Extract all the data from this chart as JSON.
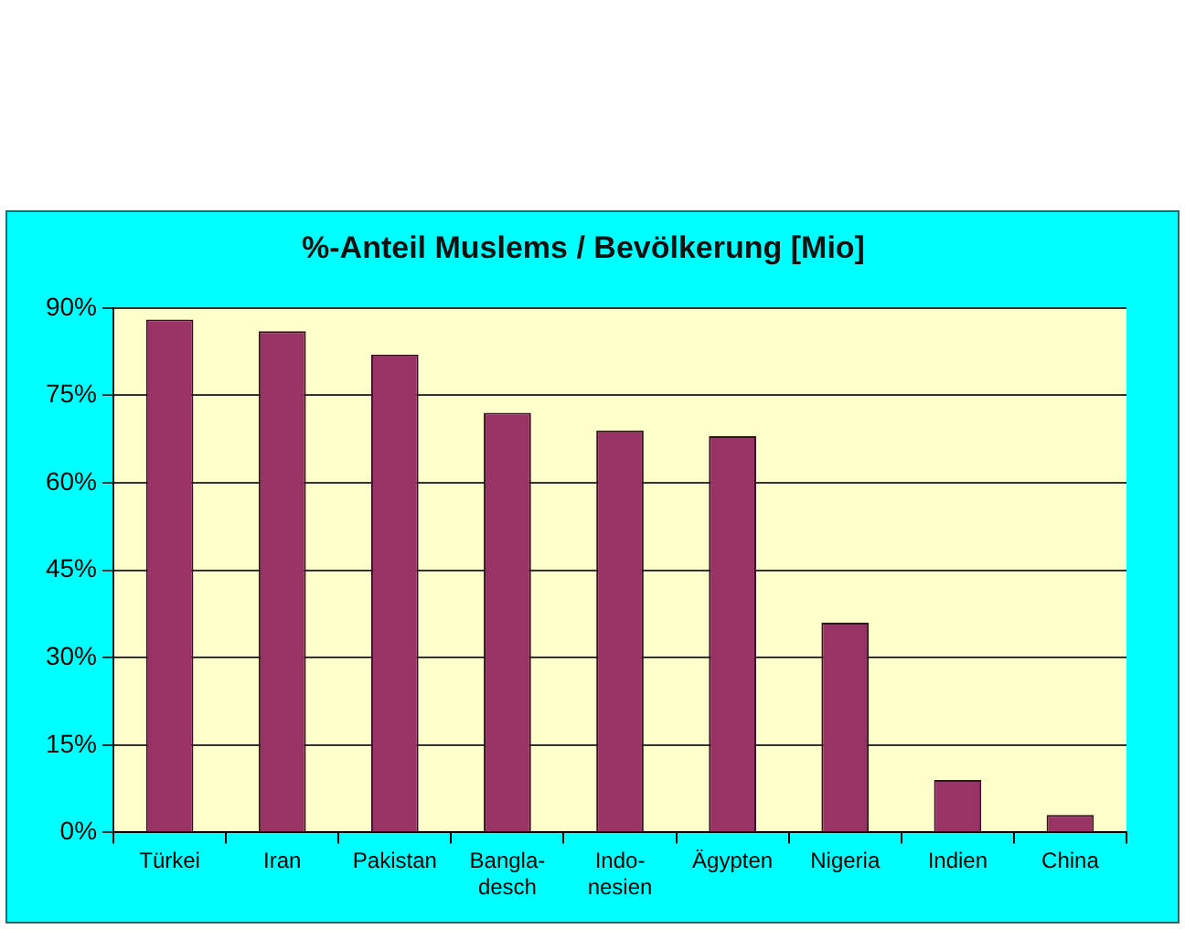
{
  "chart_data": {
    "type": "bar",
    "title": "%-Anteil Muslems / Bevölkerung [Mio]",
    "categories": [
      "Türkei",
      "Iran",
      "Pakistan",
      "Bangla-\ndesch",
      "Indo-\nnesien",
      "Ägypten",
      "Nigeria",
      "Indien",
      "China"
    ],
    "values": [
      88,
      86,
      82,
      72,
      69,
      68,
      36,
      9,
      3
    ],
    "color": "#993366",
    "ylim": [
      0,
      90
    ],
    "yticks": [
      {
        "value": 0,
        "label": "0%"
      },
      {
        "value": 15,
        "label": "15%"
      },
      {
        "value": 30,
        "label": "30%"
      },
      {
        "value": 45,
        "label": "45%"
      },
      {
        "value": 60,
        "label": "60%"
      },
      {
        "value": 75,
        "label": "75%"
      },
      {
        "value": 90,
        "label": "90%"
      }
    ],
    "grid": "y"
  }
}
